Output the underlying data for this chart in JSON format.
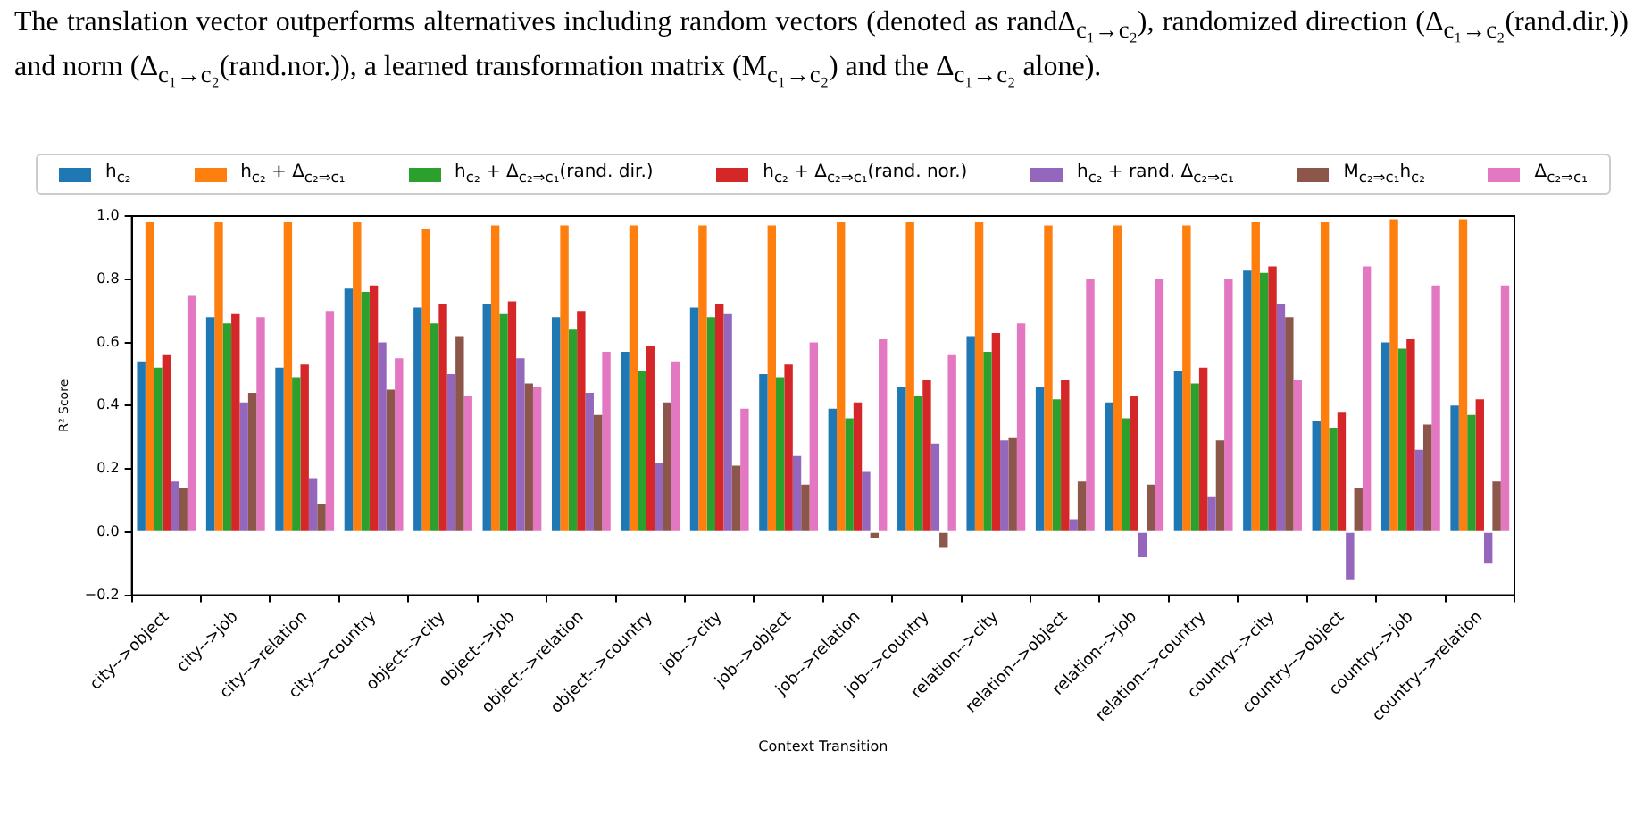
{
  "chart_data": {
    "type": "bar",
    "annotations": [
      "The translation vector outperforms alternatives including random vectors (denoted as randΔ$_{c₁→c₂}$), randomized direction (Δ$_{c₁→c₂}$(rand.dir.)) and norm (Δ$_{c₁→c₂}$(rand.nor.)), a learned transformation matrix (M$_{c₁→c₂}$) and the Δ$_{c₁→c₂}$ alone)."
    ],
    "xlabel": "Context Transition",
    "ylabel": "R² Score",
    "categories": [
      "city-->object",
      "city-->job",
      "city-->relation",
      "city-->country",
      "object-->city",
      "object-->job",
      "object-->relation",
      "object-->country",
      "job-->city",
      "job-->object",
      "job-->relation",
      "job-->country",
      "relation-->city",
      "relation-->object",
      "relation-->job",
      "relation-->country",
      "country-->city",
      "country-->object",
      "country-->job",
      "country-->relation"
    ],
    "series": [
      {
        "name": "h$_{c₂}$",
        "color": "#1f77b4",
        "values": [
          0.54,
          0.68,
          0.52,
          0.77,
          0.71,
          0.72,
          0.68,
          0.57,
          0.71,
          0.5,
          0.39,
          0.46,
          0.62,
          0.46,
          0.41,
          0.51,
          0.83,
          0.35,
          0.6,
          0.4
        ]
      },
      {
        "name": "h$_{c₂}$ + Δ$_{c₂⇒c₁}$",
        "color": "#ff7f0e",
        "values": [
          0.98,
          0.98,
          0.98,
          0.98,
          0.96,
          0.97,
          0.97,
          0.97,
          0.97,
          0.97,
          0.98,
          0.98,
          0.98,
          0.97,
          0.97,
          0.97,
          0.98,
          0.98,
          0.99,
          0.99
        ]
      },
      {
        "name": "h$_{c₂}$ + Δ$_{c₂⇒c₁}$(rand. dir.)",
        "color": "#2ca02c",
        "values": [
          0.52,
          0.66,
          0.49,
          0.76,
          0.66,
          0.69,
          0.64,
          0.51,
          0.68,
          0.49,
          0.36,
          0.43,
          0.57,
          0.42,
          0.36,
          0.47,
          0.82,
          0.33,
          0.58,
          0.37
        ]
      },
      {
        "name": "h$_{c₂}$ + Δ$_{c₂⇒c₁}$(rand. nor.)",
        "color": "#d62728",
        "values": [
          0.56,
          0.69,
          0.53,
          0.78,
          0.72,
          0.73,
          0.7,
          0.59,
          0.72,
          0.53,
          0.41,
          0.48,
          0.63,
          0.48,
          0.43,
          0.52,
          0.84,
          0.38,
          0.61,
          0.42
        ]
      },
      {
        "name": "h$_{c₂}$ + rand. Δ$_{c₂⇒c₁}$",
        "color": "#9467bd",
        "values": [
          0.16,
          0.41,
          0.17,
          0.6,
          0.5,
          0.55,
          0.44,
          0.22,
          0.69,
          0.24,
          0.19,
          0.28,
          0.29,
          0.04,
          -0.08,
          0.11,
          0.72,
          -0.15,
          0.26,
          -0.1
        ]
      },
      {
        "name": "M$_{c₂⇒c₁}$h$_{c₂}$",
        "color": "#8c564b",
        "values": [
          0.14,
          0.44,
          0.09,
          0.45,
          0.62,
          0.47,
          0.37,
          0.41,
          0.21,
          0.15,
          -0.02,
          -0.05,
          0.3,
          0.16,
          0.15,
          0.29,
          0.68,
          0.14,
          0.34,
          0.16
        ]
      },
      {
        "name": "Δ$_{c₂⇒c₁}$",
        "color": "#e377c2",
        "values": [
          0.75,
          0.68,
          0.7,
          0.55,
          0.43,
          0.46,
          0.57,
          0.54,
          0.39,
          0.6,
          0.61,
          0.56,
          0.66,
          0.8,
          0.8,
          0.8,
          0.48,
          0.84,
          0.78,
          0.78
        ]
      }
    ],
    "ylim": [
      -0.2,
      1.0
    ],
    "yticks": [
      {
        "value": -0.2,
        "label": "−0.2"
      },
      {
        "value": 0,
        "label": "0.0"
      },
      {
        "value": 0.2,
        "label": "0.2"
      },
      {
        "value": 0.4,
        "label": "0.4"
      },
      {
        "value": 0.6,
        "label": "0.6"
      },
      {
        "value": 0.8,
        "label": "0.8"
      },
      {
        "value": 1.0,
        "label": "1.0"
      }
    ],
    "grid": false,
    "legend": "top"
  }
}
